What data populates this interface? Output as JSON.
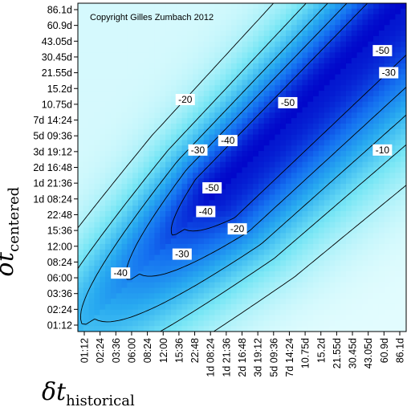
{
  "chart_data": {
    "type": "heatmap",
    "title": "",
    "watermark": "Copyright Gilles Zumbach 2012",
    "xlabel": {
      "symbol": "δt",
      "subscript": "historical"
    },
    "ylabel": {
      "symbol": "δt",
      "subscript": "centered"
    },
    "x_ticks": [
      "01:12",
      "02:24",
      "03:36",
      "06:00",
      "08:24",
      "12:00",
      "15:36",
      "22:48",
      "1d 08:24",
      "1d 21:36",
      "2d 16:48",
      "3d 19:12",
      "5d 09:36",
      "7d 14:24",
      "10.75d",
      "15.2d",
      "21.55d",
      "30.45d",
      "43.05d",
      "60.9d",
      "86.1d"
    ],
    "y_ticks": [
      "01:12",
      "02:24",
      "03:36",
      "06:00",
      "08:24",
      "12:00",
      "15:36",
      "22:48",
      "1d 08:24",
      "1d 21:36",
      "2d 16:48",
      "3d 19:12",
      "5d 09:36",
      "7d 14:24",
      "10.75d",
      "15.2d",
      "21.55d",
      "30.45d",
      "43.05d",
      "60.9d",
      "86.1d"
    ],
    "contour_levels": [
      -10,
      -20,
      -30,
      -40,
      -50
    ],
    "contour_labels": [
      {
        "text": "-40",
        "x": 2.3,
        "y": 3.3
      },
      {
        "text": "-30",
        "x": 6.2,
        "y": 4.5
      },
      {
        "text": "-40",
        "x": 7.7,
        "y": 7.2
      },
      {
        "text": "-20",
        "x": 9.7,
        "y": 6.1
      },
      {
        "text": "-50",
        "x": 8.1,
        "y": 8.7
      },
      {
        "text": "-30",
        "x": 7.2,
        "y": 11.1
      },
      {
        "text": "-40",
        "x": 9.1,
        "y": 11.7
      },
      {
        "text": "-50",
        "x": 12.9,
        "y": 14.1
      },
      {
        "text": "-20",
        "x": 6.4,
        "y": 14.3
      },
      {
        "text": "-10",
        "x": 18.9,
        "y": 11.1
      },
      {
        "text": "-30",
        "x": 19.3,
        "y": 16.0
      },
      {
        "text": "-50",
        "x": 18.9,
        "y": 17.4
      }
    ],
    "colors": {
      "background": "#ffffff",
      "low": "#0000cd",
      "mid": "#1e90ff",
      "high": "#f0ffff",
      "contour": "#000000"
    }
  }
}
